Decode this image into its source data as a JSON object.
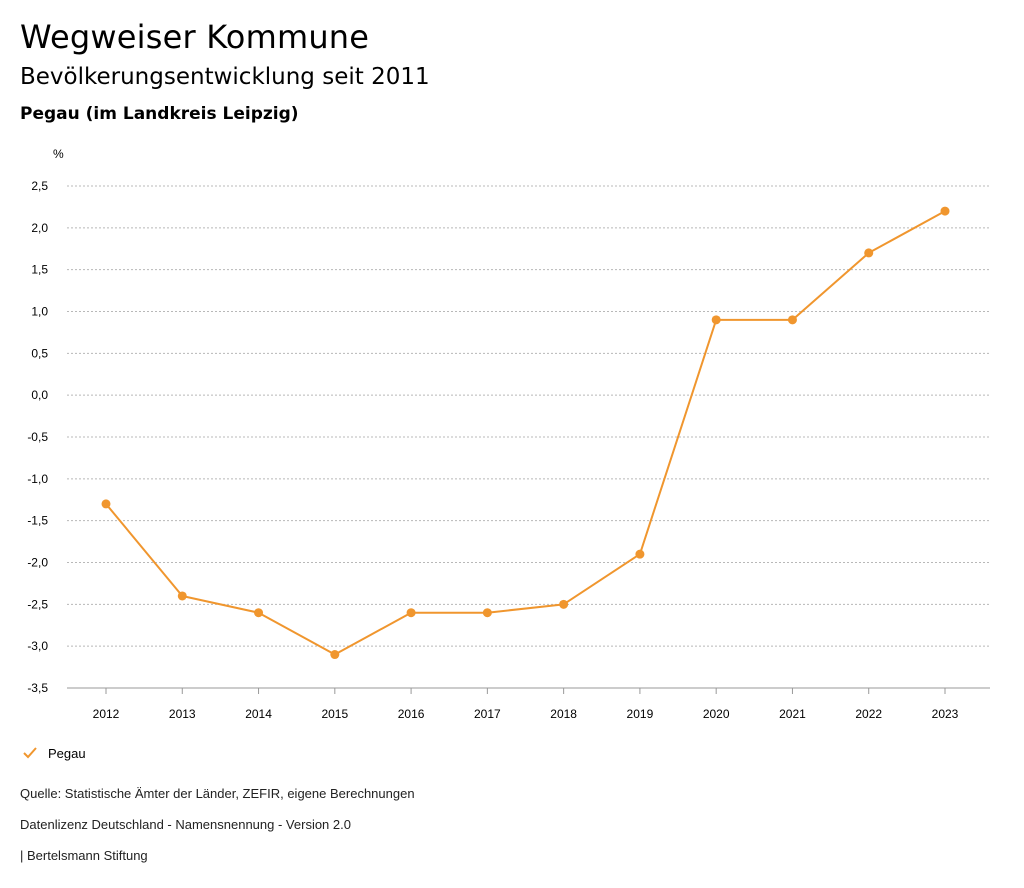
{
  "header": {
    "title": "Wegweiser Kommune",
    "subtitle": "Bevölkerungsentwicklung seit 2011",
    "region": "Pegau (im Landkreis Leipzig)"
  },
  "legend": {
    "label": "Pegau",
    "icon": "checkmark-icon"
  },
  "footer": {
    "source": "Quelle: Statistische Ämter der Länder, ZEFIR, eigene Berechnungen",
    "license": "Datenlizenz Deutschland - Namensnennung - Version 2.0",
    "brand": "| Bertelsmann Stiftung"
  },
  "colors": {
    "series": "#f0962e",
    "grid": "#b8b8b8"
  },
  "chart_data": {
    "type": "line",
    "title": "Bevölkerungsentwicklung seit 2011",
    "xlabel": "",
    "ylabel": "%",
    "ylim": [
      -3.5,
      2.5
    ],
    "y_ticks": [
      "2,5",
      "2,0",
      "1,5",
      "1,0",
      "0,5",
      "0,0",
      "-0,5",
      "-1,0",
      "-1,5",
      "-2,0",
      "-2,5",
      "-3,0",
      "-3,5"
    ],
    "y_tick_values": [
      2.5,
      2.0,
      1.5,
      1.0,
      0.5,
      0.0,
      -0.5,
      -1.0,
      -1.5,
      -2.0,
      -2.5,
      -3.0,
      -3.5
    ],
    "categories": [
      "2012",
      "2013",
      "2014",
      "2015",
      "2016",
      "2017",
      "2018",
      "2019",
      "2020",
      "2021",
      "2022",
      "2023"
    ],
    "grid": true,
    "legend_position": "bottom-left",
    "series": [
      {
        "name": "Pegau",
        "values": [
          -1.3,
          -2.4,
          -2.6,
          -3.1,
          -2.6,
          -2.6,
          -2.5,
          -1.9,
          0.9,
          0.9,
          1.7,
          2.2
        ]
      }
    ]
  }
}
